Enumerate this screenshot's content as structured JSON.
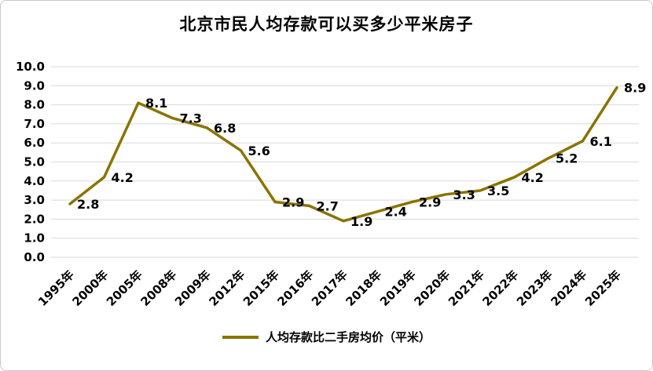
{
  "chart_data": {
    "type": "line",
    "title": "北京市民人均存款可以买多少平米房子",
    "categories": [
      "1995年",
      "2000年",
      "2005年",
      "2008年",
      "2009年",
      "2012年",
      "2015年",
      "2016年",
      "2017年",
      "2018年",
      "2019年",
      "2020年",
      "2021年",
      "2022年",
      "2023年",
      "2024年",
      "2025年"
    ],
    "values": [
      2.8,
      4.2,
      8.1,
      7.3,
      6.8,
      5.6,
      2.9,
      2.7,
      1.9,
      2.4,
      2.9,
      3.3,
      3.5,
      4.2,
      5.2,
      6.1,
      8.9
    ],
    "series_name": "人均存款比二手房均价（平米）",
    "xlabel": "",
    "ylabel": "",
    "ylim": [
      0,
      10
    ],
    "y_tick_step": 1,
    "y_tick_decimals": 1,
    "grid": true,
    "legend_position": "bottom",
    "data_labels": true,
    "line_color": "#8B7300",
    "grid_color": "#d9d9d9",
    "label_color": "#000000"
  }
}
